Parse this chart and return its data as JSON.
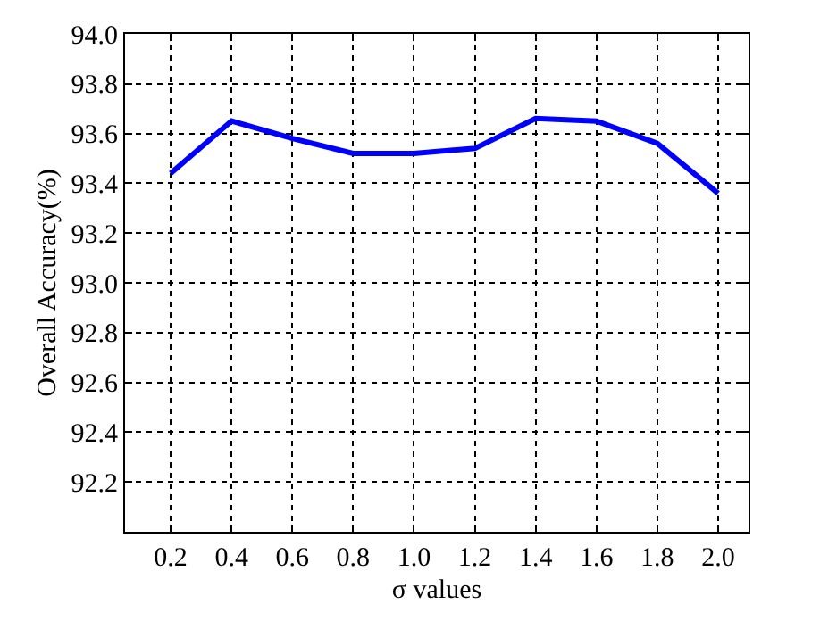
{
  "chart_data": {
    "type": "line",
    "xlabel": "σ values",
    "ylabel": "Overall Accuracy(%)",
    "x": [
      0.2,
      0.4,
      0.6,
      0.8,
      1.0,
      1.2,
      1.4,
      1.6,
      1.8,
      2.0
    ],
    "series": [
      {
        "color": "#0000ff",
        "values": [
          93.44,
          93.65,
          93.58,
          93.52,
          93.52,
          93.54,
          93.66,
          93.65,
          93.56,
          93.36
        ]
      }
    ],
    "xlim": [
      0.05,
      2.1
    ],
    "xticks": [
      {
        "value": 0.2,
        "label": "0.2"
      },
      {
        "value": 0.4,
        "label": "0.4"
      },
      {
        "value": 0.6,
        "label": "0.6"
      },
      {
        "value": 0.8,
        "label": "0.8"
      },
      {
        "value": 1.0,
        "label": "1.0"
      },
      {
        "value": 1.2,
        "label": "1.2"
      },
      {
        "value": 1.4,
        "label": "1.4"
      },
      {
        "value": 1.6,
        "label": "1.6"
      },
      {
        "value": 1.8,
        "label": "1.8"
      },
      {
        "value": 2.0,
        "label": "2.0"
      }
    ],
    "ylim": [
      92.0,
      94.0
    ],
    "yticks": [
      92.2,
      92.4,
      92.6,
      92.8,
      {
        "value": 93.0,
        "label": "93.0"
      },
      93.2,
      93.4,
      93.6,
      93.8,
      {
        "value": 94.0,
        "label": "94.0"
      }
    ],
    "grid": true,
    "line_style": "solid"
  }
}
